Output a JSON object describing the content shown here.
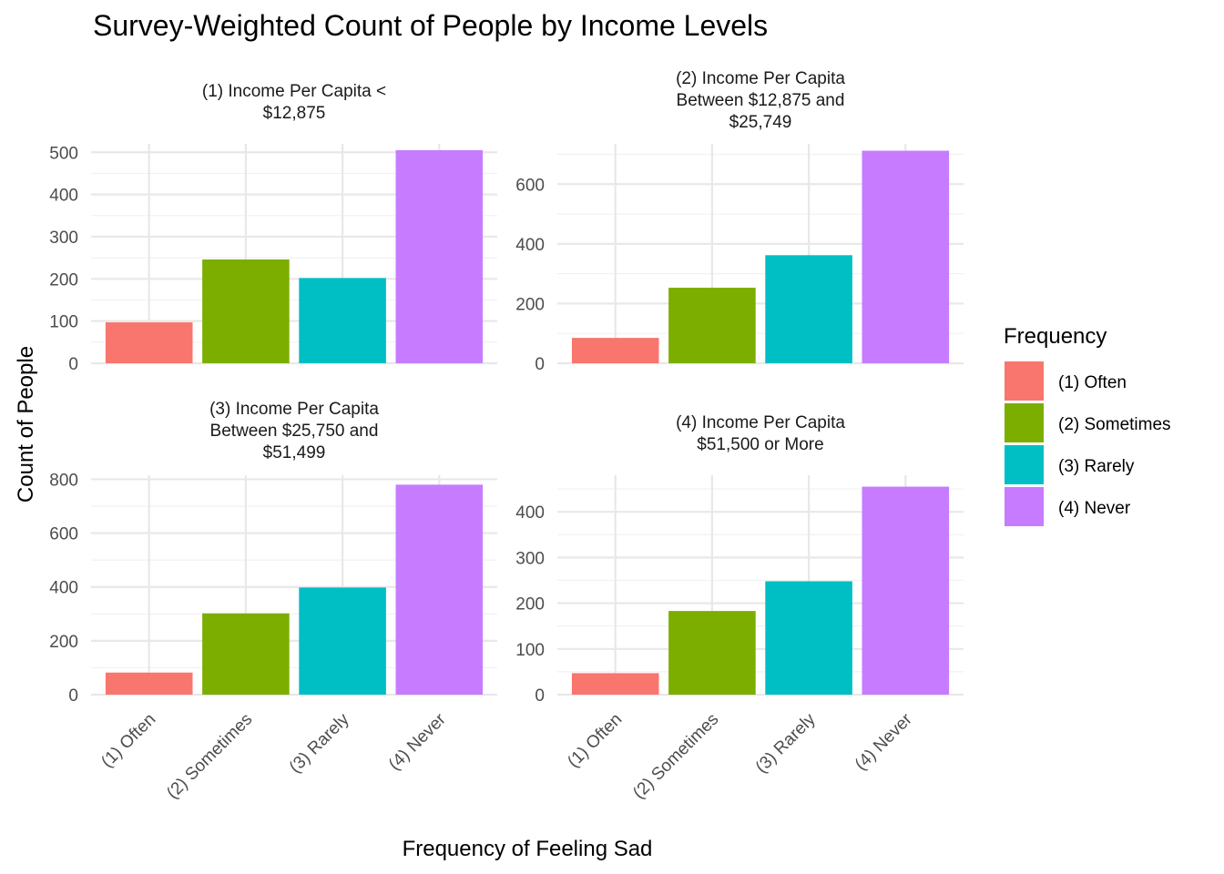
{
  "chart_data": {
    "type": "bar",
    "title": "Survey-Weighted Count of People by Income Levels",
    "xlabel": "Frequency of Feeling Sad",
    "ylabel": "Count of People",
    "categories": [
      "(1) Often",
      "(2) Sometimes",
      "(3) Rarely",
      "(4) Never"
    ],
    "colors": [
      "#F8766D",
      "#7CAE00",
      "#00BFC4",
      "#C77CFF"
    ],
    "legend": {
      "title": "Frequency",
      "placement": "right",
      "entries": [
        "(1) Often",
        "(2) Sometimes",
        "(3) Rarely",
        "(4) Never"
      ]
    },
    "grid": true,
    "facets": [
      {
        "title_lines": [
          "(1) Income Per Capita <",
          "$12,875"
        ],
        "values": [
          97,
          246,
          202,
          505
        ],
        "ylim": [
          0,
          520
        ],
        "yticks": [
          0,
          100,
          200,
          300,
          400,
          500
        ]
      },
      {
        "title_lines": [
          "(2) Income Per Capita",
          "Between $12,875 and",
          "$25,749"
        ],
        "values": [
          85,
          253,
          362,
          712
        ],
        "ylim": [
          0,
          735
        ],
        "yticks": [
          0,
          200,
          400,
          600
        ]
      },
      {
        "title_lines": [
          "(3) Income Per Capita",
          "Between $25,750 and",
          "$51,499"
        ],
        "values": [
          82,
          302,
          398,
          780
        ],
        "ylim": [
          0,
          815
        ],
        "yticks": [
          0,
          200,
          400,
          600,
          800
        ]
      },
      {
        "title_lines": [
          "(4) Income Per Capita",
          "$51,500 or More"
        ],
        "values": [
          47,
          183,
          248,
          455
        ],
        "ylim": [
          0,
          480
        ],
        "yticks": [
          0,
          100,
          200,
          300,
          400
        ]
      }
    ]
  }
}
